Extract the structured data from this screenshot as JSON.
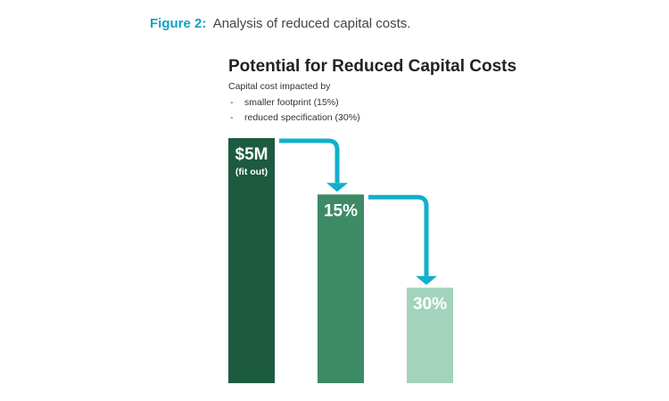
{
  "chart_data": {
    "type": "bar",
    "caption_label": "Figure 2:",
    "caption": "Analysis of reduced capital costs.",
    "title": "Potential for Reduced Capital Costs",
    "subtitle": "Capital cost impacted by",
    "notes": [
      "smaller footprint (15%)",
      "reduced specification (30%)"
    ],
    "note_bullet": "-",
    "bar_labels": [
      "$5M",
      "15%",
      "30%"
    ],
    "bar_sublabel": "(fit out)",
    "values": [
      5,
      3.85,
      1.95
    ],
    "colors": [
      "#1c5b40",
      "#3d8a66",
      "#a3d3bc"
    ],
    "arrow_color": "#0fb0cc"
  }
}
